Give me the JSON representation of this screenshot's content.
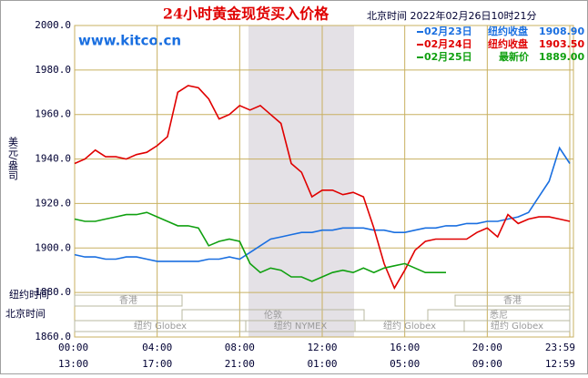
{
  "chart_data": {
    "type": "line",
    "title": "24小时黄金现货买入价格",
    "subtitle": "北京时间 2022年02月26日10时21分",
    "site": "www.kitco.cn",
    "y_label": "美元/盎司",
    "x_row_labels": [
      "纽约时间",
      "北京时间"
    ],
    "sessions": [
      "香港",
      "伦敦",
      "纽约 NYMEX",
      "纽约 Globex",
      "悉尼",
      "香港",
      "纽约 Globex",
      "纽约 Globex"
    ],
    "xlim": [
      0,
      24
    ],
    "xticks": [
      {
        "value": 0,
        "label": "00:00"
      },
      {
        "value": 4,
        "label": "04:00"
      },
      {
        "value": 8,
        "label": "08:00"
      },
      {
        "value": 12,
        "label": "12:00"
      },
      {
        "value": 16,
        "label": "16:00"
      },
      {
        "value": 20,
        "label": "20:00"
      },
      {
        "value": 24,
        "label": "23:59"
      }
    ],
    "x2ticks": [
      {
        "value": 0,
        "label": "13:00"
      },
      {
        "value": 4,
        "label": "17:00"
      },
      {
        "value": 8,
        "label": "21:00"
      },
      {
        "value": 12,
        "label": "01:00"
      },
      {
        "value": 16,
        "label": "05:00"
      },
      {
        "value": 20,
        "label": "09:00"
      },
      {
        "value": 24,
        "label": "12:59"
      }
    ],
    "ylim": [
      1860,
      2000
    ],
    "yticks": [
      {
        "value": 1860,
        "label": "1860.0"
      },
      {
        "value": 1880,
        "label": "1880.0"
      },
      {
        "value": 1900,
        "label": "1900.0"
      },
      {
        "value": 1920,
        "label": "1920.0"
      },
      {
        "value": 1940,
        "label": "1940.0"
      },
      {
        "value": 1960,
        "label": "1960.0"
      },
      {
        "value": 1980,
        "label": "1980.0"
      },
      {
        "value": 2000,
        "label": "2000.0"
      }
    ],
    "grid": true,
    "x": [
      0,
      0.5,
      1,
      1.5,
      2,
      2.5,
      3,
      3.5,
      4,
      4.5,
      5,
      5.5,
      6,
      6.5,
      7,
      7.5,
      8,
      8.5,
      9,
      9.5,
      10,
      10.5,
      11,
      11.5,
      12,
      12.5,
      13,
      13.5,
      14,
      14.5,
      15,
      15.5,
      16,
      16.5,
      17,
      17.5,
      18,
      18.5,
      19,
      19.5,
      20,
      20.5,
      21,
      21.5,
      22,
      22.5,
      23,
      23.5,
      24
    ],
    "series": [
      {
        "name": "02月23日",
        "label": "纽约收盘",
        "price": "1908.90",
        "color": "#1a6fe0",
        "values": [
          1897,
          1896,
          1896,
          1895,
          1895,
          1896,
          1896,
          1895,
          1894,
          1894,
          1894,
          1894,
          1894,
          1895,
          1895,
          1896,
          1895,
          1898,
          1901,
          1904,
          1905,
          1906,
          1907,
          1907,
          1908,
          1908,
          1909,
          1909,
          1909,
          1908,
          1908,
          1907,
          1907,
          1908,
          1909,
          1909,
          1910,
          1910,
          1911,
          1911,
          1912,
          1912,
          1913,
          1914,
          1916,
          1923,
          1930,
          1945,
          1938
        ]
      },
      {
        "name": "02月24日",
        "label": "纽约收盘",
        "price": "1903.50",
        "color": "#e00000",
        "values": [
          1938,
          1940,
          1944,
          1941,
          1941,
          1940,
          1942,
          1943,
          1946,
          1950,
          1970,
          1973,
          1972,
          1967,
          1958,
          1960,
          1964,
          1962,
          1964,
          1960,
          1956,
          1938,
          1934,
          1923,
          1926,
          1926,
          1924,
          1925,
          1923,
          1909,
          1893,
          1882,
          1890,
          1899,
          1903,
          1904,
          1904,
          1904,
          1904,
          1907,
          1909,
          1905,
          1915,
          1911,
          1913,
          1914,
          1914,
          1913,
          1912
        ]
      },
      {
        "name": "02月25日",
        "label": "最新价",
        "price": "1889.00",
        "color": "#10a010",
        "values": [
          1913,
          1912,
          1912,
          1913,
          1914,
          1915,
          1915,
          1916,
          1914,
          1912,
          1910,
          1910,
          1909,
          1901,
          1903,
          1904,
          1903,
          1893,
          1889,
          1891,
          1890,
          1887,
          1887,
          1885,
          1887,
          1889,
          1890,
          1889,
          1891,
          1889,
          1891,
          1892,
          1893,
          1891,
          1889,
          1889,
          1889,
          null,
          null,
          null,
          null,
          null,
          null,
          null,
          null,
          null,
          null,
          null,
          null
        ]
      }
    ]
  }
}
